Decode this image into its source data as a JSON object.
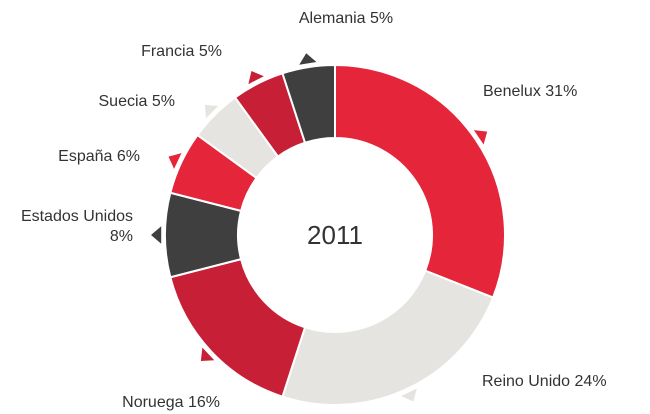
{
  "chart_data": {
    "type": "pie",
    "title": "2011",
    "categories": [
      "Benelux",
      "Reino Unido",
      "Noruega",
      "Estados Unidos",
      "España",
      "Suecia",
      "Francia",
      "Alemania"
    ],
    "values": [
      31,
      24,
      16,
      8,
      6,
      5,
      5,
      5
    ],
    "value_labels": [
      "31%",
      "24%",
      "16%",
      "8%",
      "6%",
      "5%",
      "5%",
      "5%"
    ],
    "colors": [
      "#e4253a",
      "#e6e4e0",
      "#c71f35",
      "#3f3f3f",
      "#e4253a",
      "#e6e4e0",
      "#c71f35",
      "#3f3f3f"
    ]
  }
}
